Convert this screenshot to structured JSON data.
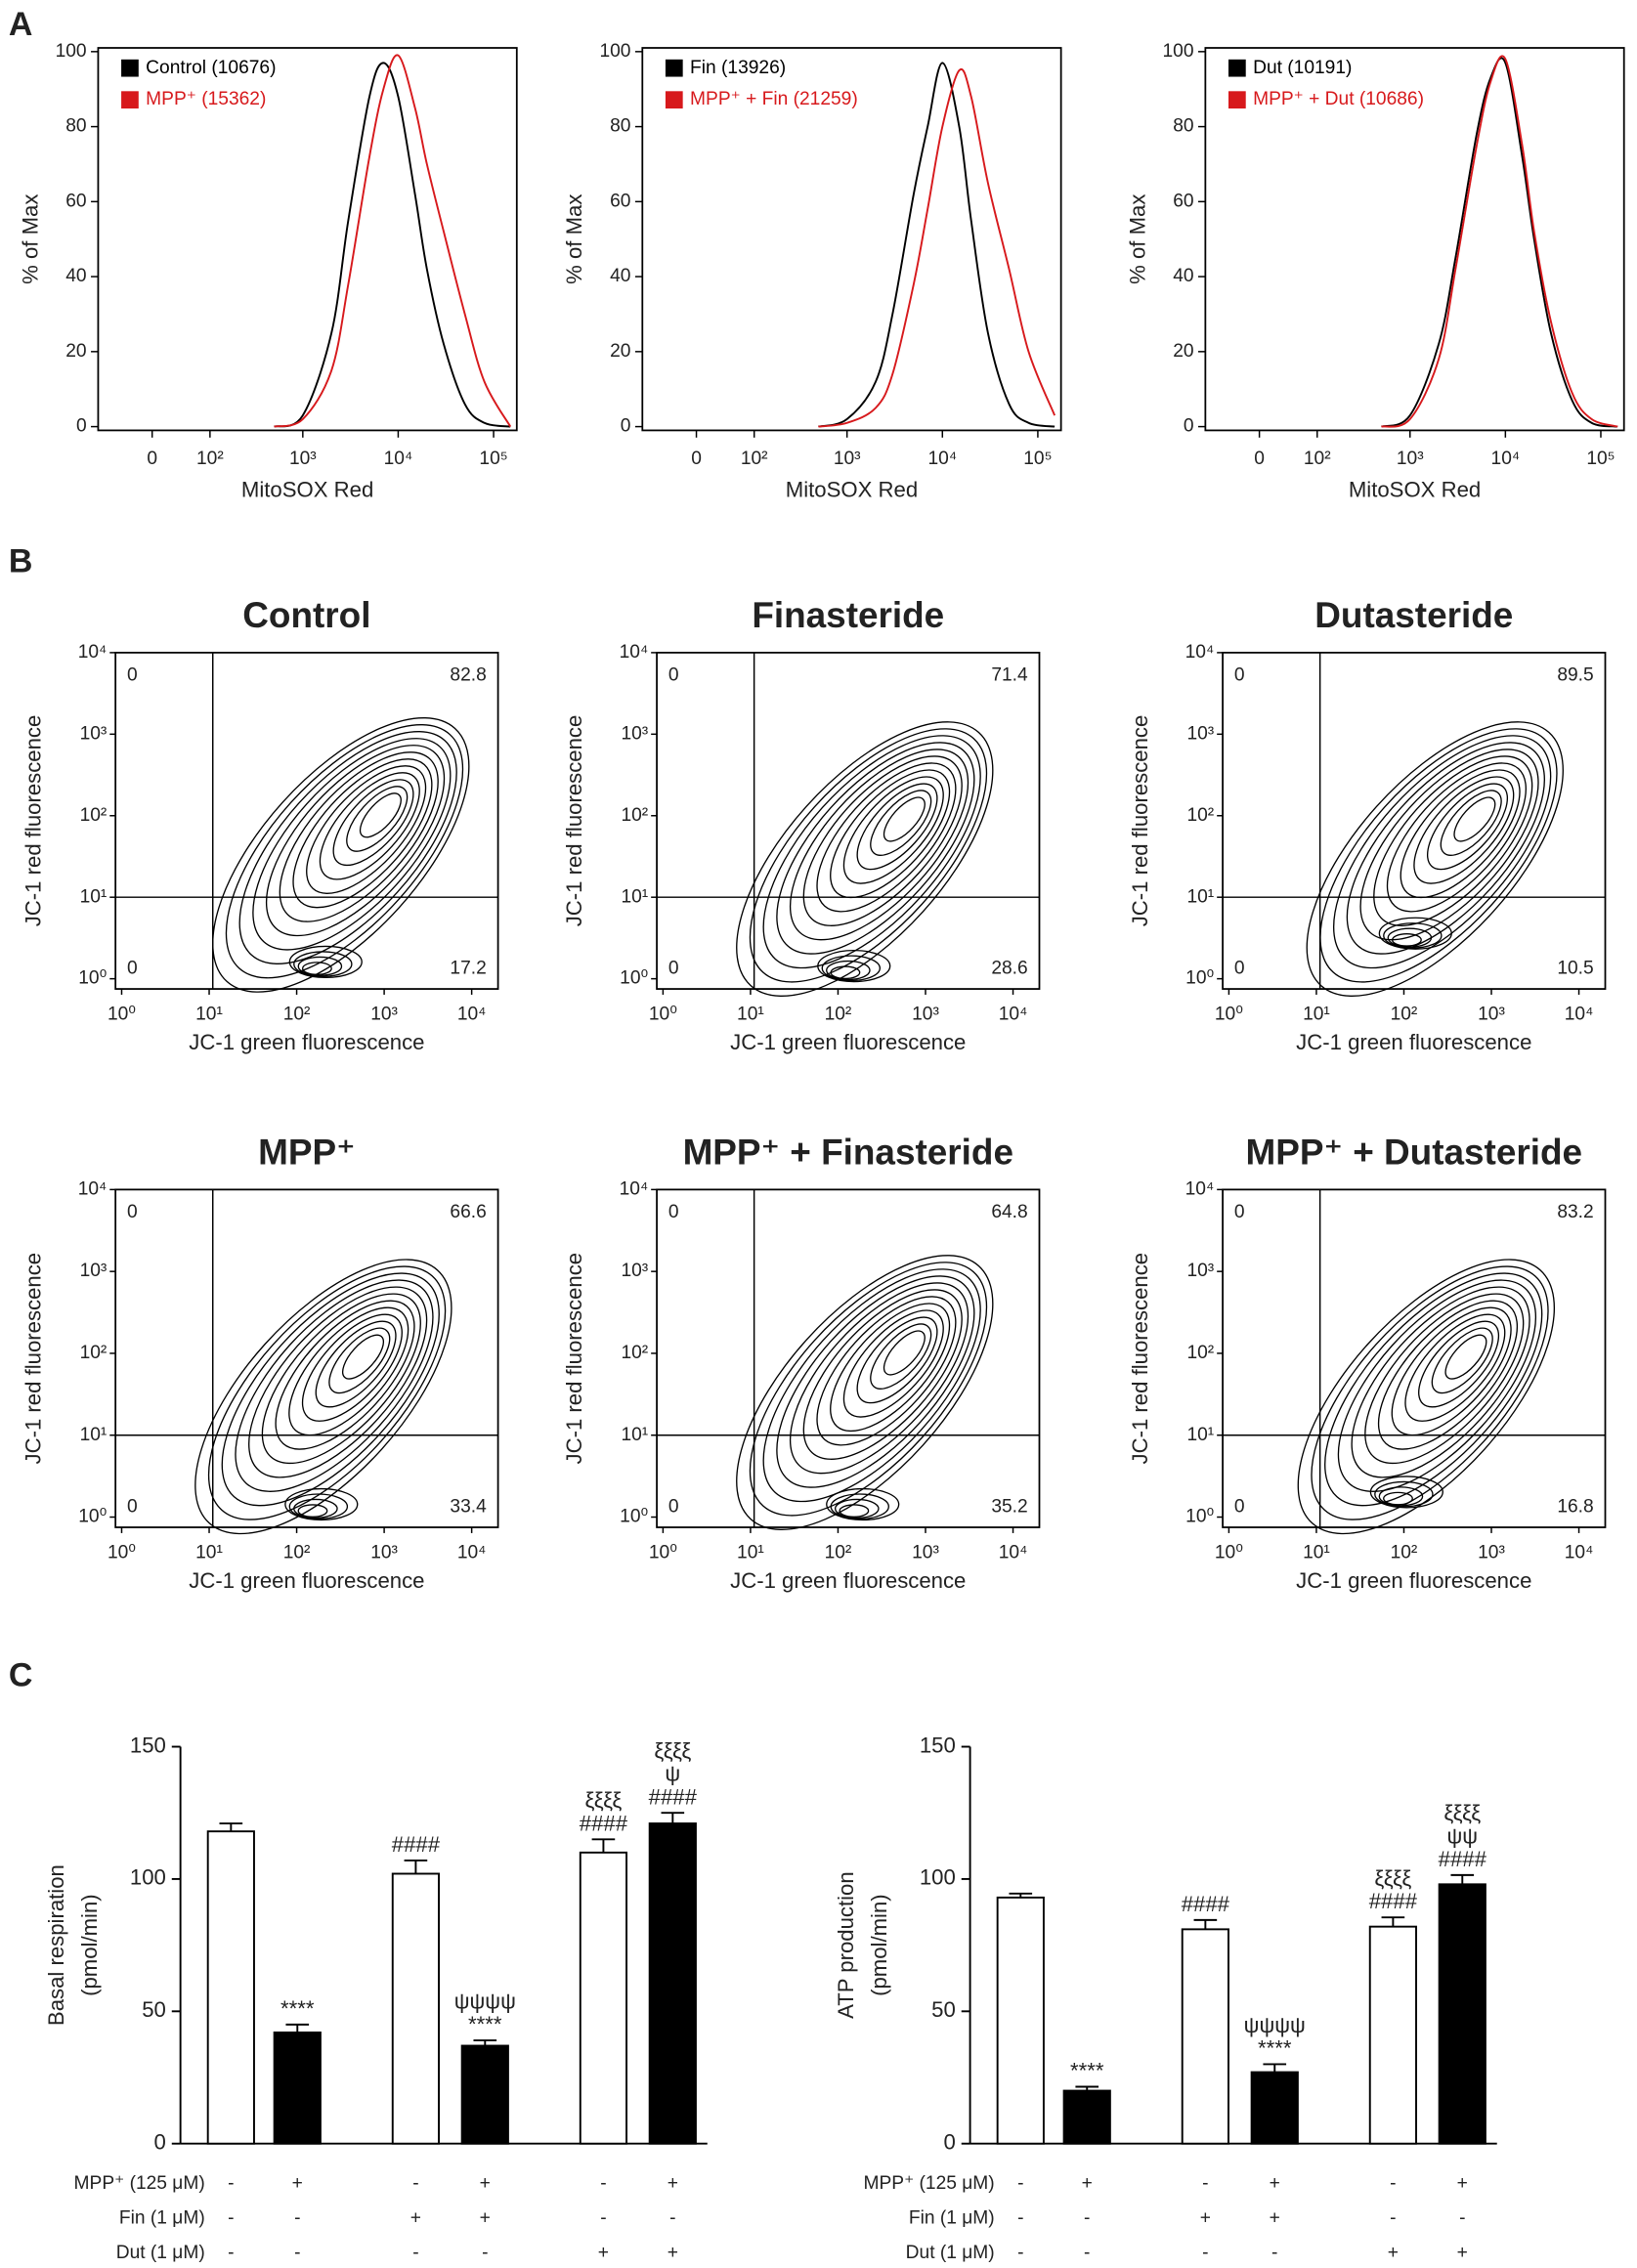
{
  "panel_labels": [
    "A",
    "B",
    "C"
  ],
  "chart_data": [
    {
      "type": "line",
      "xlabel": "MitoSOX Red",
      "ylabel": "% of Max",
      "xscale": "biexponential",
      "x": [
        500,
        1000,
        2000,
        3000,
        5000,
        7000,
        10000,
        15000,
        20000,
        30000,
        50000,
        80000,
        150000
      ],
      "series": [
        {
          "name": "Control (10676)",
          "color": "#000000",
          "values": [
            0,
            3,
            25,
            55,
            88,
            97,
            88,
            62,
            42,
            22,
            6,
            1,
            0
          ]
        },
        {
          "name": "MPP⁺ (15362)",
          "color": "#d7191c",
          "values": [
            0,
            2,
            15,
            38,
            72,
            90,
            99,
            85,
            70,
            52,
            30,
            12,
            0
          ]
        }
      ],
      "xlim": [
        -90,
        175000
      ],
      "xticks": [
        {
          "value": 0,
          "label": "0"
        },
        {
          "value": 100,
          "label": "10²"
        },
        {
          "value": 1000,
          "label": "10³"
        },
        {
          "value": 10000,
          "label": "10⁴"
        },
        {
          "value": 100000,
          "label": "10⁵"
        }
      ],
      "ylim": [
        -1,
        101
      ],
      "yticks": [
        0,
        20,
        40,
        60,
        80,
        100
      ],
      "legend": "upper left"
    },
    {
      "type": "line",
      "xlabel": "MitoSOX Red",
      "ylabel": "% of Max",
      "xscale": "biexponential",
      "x": [
        500,
        1000,
        2000,
        3000,
        5000,
        7000,
        10000,
        15000,
        20000,
        30000,
        50000,
        80000,
        150000
      ],
      "series": [
        {
          "name": "Fin (13926)",
          "color": "#000000",
          "values": [
            0,
            2,
            12,
            30,
            62,
            80,
            97,
            80,
            55,
            25,
            6,
            1,
            0
          ]
        },
        {
          "name": "MPP⁺ + Fin (21259)",
          "color": "#d7191c",
          "values": [
            0,
            1,
            5,
            14,
            38,
            58,
            80,
            95,
            88,
            65,
            42,
            20,
            3
          ]
        }
      ],
      "xlim": [
        -90,
        175000
      ],
      "xticks": [
        {
          "value": 0,
          "label": "0"
        },
        {
          "value": 100,
          "label": "10²"
        },
        {
          "value": 1000,
          "label": "10³"
        },
        {
          "value": 10000,
          "label": "10⁴"
        },
        {
          "value": 100000,
          "label": "10⁵"
        }
      ],
      "ylim": [
        -1,
        101
      ],
      "yticks": [
        0,
        20,
        40,
        60,
        80,
        100
      ],
      "legend": "upper left"
    },
    {
      "type": "line",
      "xlabel": "MitoSOX Red",
      "ylabel": "% of Max",
      "xscale": "biexponential",
      "x": [
        500,
        1000,
        2000,
        3000,
        5000,
        7000,
        10000,
        15000,
        20000,
        30000,
        50000,
        80000,
        150000
      ],
      "series": [
        {
          "name": "Dut (10191)",
          "color": "#000000",
          "values": [
            0,
            3,
            22,
            45,
            78,
            93,
            97,
            72,
            50,
            25,
            7,
            1,
            0
          ]
        },
        {
          "name": "MPP⁺ + Dut (10686)",
          "color": "#d7191c",
          "values": [
            0,
            2,
            18,
            42,
            75,
            92,
            98,
            75,
            52,
            28,
            9,
            2,
            0
          ]
        }
      ],
      "xlim": [
        -90,
        175000
      ],
      "xticks": [
        {
          "value": 0,
          "label": "0"
        },
        {
          "value": 100,
          "label": "10²"
        },
        {
          "value": 1000,
          "label": "10³"
        },
        {
          "value": 10000,
          "label": "10⁴"
        },
        {
          "value": 100000,
          "label": "10⁵"
        }
      ],
      "ylim": [
        -1,
        101
      ],
      "yticks": [
        0,
        20,
        40,
        60,
        80,
        100
      ],
      "legend": "upper left"
    },
    {
      "type": "contour",
      "title": "Control",
      "xlabel": "JC-1 green fluorescence",
      "ylabel": "JC-1 red fluorescence",
      "xscale": "log",
      "yscale": "log",
      "xlim": [
        0.85,
        20000
      ],
      "ylim": [
        0.75,
        10000
      ],
      "xticks": [
        {
          "value": 1,
          "label": "10⁰"
        },
        {
          "value": 10,
          "label": "10¹"
        },
        {
          "value": 100,
          "label": "10²"
        },
        {
          "value": 1000,
          "label": "10³"
        },
        {
          "value": 10000,
          "label": "10⁴"
        }
      ],
      "yticks": [
        {
          "value": 1,
          "label": "10⁰"
        },
        {
          "value": 10,
          "label": "10¹"
        },
        {
          "value": 100,
          "label": "10²"
        },
        {
          "value": 1000,
          "label": "10³"
        },
        {
          "value": 10000,
          "label": "10⁴"
        }
      ],
      "gates": {
        "x": 11,
        "y": 10
      },
      "quadrants": [
        0,
        82.8,
        0,
        17.2
      ]
    },
    {
      "type": "contour",
      "title": "Finasteride",
      "xlabel": "JC-1 green fluorescence",
      "ylabel": "JC-1 red fluorescence",
      "xscale": "log",
      "yscale": "log",
      "xlim": [
        0.85,
        20000
      ],
      "ylim": [
        0.75,
        10000
      ],
      "xticks": [
        {
          "value": 1,
          "label": "10⁰"
        },
        {
          "value": 10,
          "label": "10¹"
        },
        {
          "value": 100,
          "label": "10²"
        },
        {
          "value": 1000,
          "label": "10³"
        },
        {
          "value": 10000,
          "label": "10⁴"
        }
      ],
      "yticks": [
        {
          "value": 1,
          "label": "10⁰"
        },
        {
          "value": 10,
          "label": "10¹"
        },
        {
          "value": 100,
          "label": "10²"
        },
        {
          "value": 1000,
          "label": "10³"
        },
        {
          "value": 10000,
          "label": "10⁴"
        }
      ],
      "gates": {
        "x": 11,
        "y": 10
      },
      "quadrants": [
        0,
        71.4,
        0,
        28.6
      ]
    },
    {
      "type": "contour",
      "title": "Dutasteride",
      "xlabel": "JC-1 green fluorescence",
      "ylabel": "JC-1 red fluorescence",
      "xscale": "log",
      "yscale": "log",
      "xlim": [
        0.85,
        20000
      ],
      "ylim": [
        0.75,
        10000
      ],
      "xticks": [
        {
          "value": 1,
          "label": "10⁰"
        },
        {
          "value": 10,
          "label": "10¹"
        },
        {
          "value": 100,
          "label": "10²"
        },
        {
          "value": 1000,
          "label": "10³"
        },
        {
          "value": 10000,
          "label": "10⁴"
        }
      ],
      "yticks": [
        {
          "value": 1,
          "label": "10⁰"
        },
        {
          "value": 10,
          "label": "10¹"
        },
        {
          "value": 100,
          "label": "10²"
        },
        {
          "value": 1000,
          "label": "10³"
        },
        {
          "value": 10000,
          "label": "10⁴"
        }
      ],
      "gates": {
        "x": 11,
        "y": 10
      },
      "quadrants": [
        0,
        89.5,
        0,
        10.5
      ]
    },
    {
      "type": "contour",
      "title": "MPP⁺",
      "xlabel": "JC-1 green fluorescence",
      "ylabel": "JC-1 red fluorescence",
      "xscale": "log",
      "yscale": "log",
      "xlim": [
        0.85,
        20000
      ],
      "ylim": [
        0.75,
        10000
      ],
      "xticks": [
        {
          "value": 1,
          "label": "10⁰"
        },
        {
          "value": 10,
          "label": "10¹"
        },
        {
          "value": 100,
          "label": "10²"
        },
        {
          "value": 1000,
          "label": "10³"
        },
        {
          "value": 10000,
          "label": "10⁴"
        }
      ],
      "yticks": [
        {
          "value": 1,
          "label": "10⁰"
        },
        {
          "value": 10,
          "label": "10¹"
        },
        {
          "value": 100,
          "label": "10²"
        },
        {
          "value": 1000,
          "label": "10³"
        },
        {
          "value": 10000,
          "label": "10⁴"
        }
      ],
      "gates": {
        "x": 11,
        "y": 10
      },
      "quadrants": [
        0,
        66.6,
        0,
        33.4
      ]
    },
    {
      "type": "contour",
      "title": "MPP⁺ + Finasteride",
      "xlabel": "JC-1 green fluorescence",
      "ylabel": "JC-1 red fluorescence",
      "xscale": "log",
      "yscale": "log",
      "xlim": [
        0.85,
        20000
      ],
      "ylim": [
        0.75,
        10000
      ],
      "xticks": [
        {
          "value": 1,
          "label": "10⁰"
        },
        {
          "value": 10,
          "label": "10¹"
        },
        {
          "value": 100,
          "label": "10²"
        },
        {
          "value": 1000,
          "label": "10³"
        },
        {
          "value": 10000,
          "label": "10⁴"
        }
      ],
      "yticks": [
        {
          "value": 1,
          "label": "10⁰"
        },
        {
          "value": 10,
          "label": "10¹"
        },
        {
          "value": 100,
          "label": "10²"
        },
        {
          "value": 1000,
          "label": "10³"
        },
        {
          "value": 10000,
          "label": "10⁴"
        }
      ],
      "gates": {
        "x": 11,
        "y": 10
      },
      "quadrants": [
        0,
        64.8,
        0,
        35.2
      ]
    },
    {
      "type": "contour",
      "title": "MPP⁺ + Dutasteride",
      "xlabel": "JC-1 green fluorescence",
      "ylabel": "JC-1 red fluorescence",
      "xscale": "log",
      "yscale": "log",
      "xlim": [
        0.85,
        20000
      ],
      "ylim": [
        0.75,
        10000
      ],
      "xticks": [
        {
          "value": 1,
          "label": "10⁰"
        },
        {
          "value": 10,
          "label": "10¹"
        },
        {
          "value": 100,
          "label": "10²"
        },
        {
          "value": 1000,
          "label": "10³"
        },
        {
          "value": 10000,
          "label": "10⁴"
        }
      ],
      "yticks": [
        {
          "value": 1,
          "label": "10⁰"
        },
        {
          "value": 10,
          "label": "10¹"
        },
        {
          "value": 100,
          "label": "10²"
        },
        {
          "value": 1000,
          "label": "10³"
        },
        {
          "value": 10000,
          "label": "10⁴"
        }
      ],
      "gates": {
        "x": 11,
        "y": 10
      },
      "quadrants": [
        0,
        83.2,
        0,
        16.8
      ]
    },
    {
      "type": "bar",
      "ylabel": [
        "Basal respiration",
        "(pmol/min)"
      ],
      "values": [
        118,
        42,
        102,
        37,
        110,
        121
      ],
      "errors": [
        3,
        3,
        5,
        2,
        5,
        4
      ],
      "colors": [
        "#ffffff",
        "#000000",
        "#ffffff",
        "#000000",
        "#ffffff",
        "#000000"
      ],
      "annotations": [
        [],
        [
          "****"
        ],
        [
          "####"
        ],
        [
          "ψψψψ",
          "****"
        ],
        [
          "ξξξξ",
          "####"
        ],
        [
          "ξξξξ",
          "ψ",
          "####"
        ]
      ],
      "ylim": [
        0,
        150
      ],
      "yticks": [
        0,
        50,
        100,
        150
      ],
      "treatments": {
        "labels": [
          "MPP⁺ (125 μM)",
          "Fin (1 μM)",
          "Dut (1 μM)"
        ],
        "rows": [
          [
            "-",
            "+",
            "-",
            "+",
            "-",
            "+"
          ],
          [
            "-",
            "-",
            "+",
            "+",
            "-",
            "-"
          ],
          [
            "-",
            "-",
            "-",
            "-",
            "+",
            "+"
          ]
        ]
      }
    },
    {
      "type": "bar",
      "ylabel": [
        "ATP production",
        "(pmol/min)"
      ],
      "values": [
        93,
        20,
        81,
        27,
        82,
        98
      ],
      "errors": [
        1.5,
        1.5,
        3.5,
        3,
        3.5,
        3.5
      ],
      "colors": [
        "#ffffff",
        "#000000",
        "#ffffff",
        "#000000",
        "#ffffff",
        "#000000"
      ],
      "annotations": [
        [],
        [
          "****"
        ],
        [
          "####"
        ],
        [
          "ψψψψ",
          "****"
        ],
        [
          "ξξξξ",
          "####"
        ],
        [
          "ξξξξ",
          "ψψ",
          "####"
        ]
      ],
      "ylim": [
        0,
        150
      ],
      "yticks": [
        0,
        50,
        100,
        150
      ],
      "treatments": {
        "labels": [
          "MPP⁺ (125 μM)",
          "Fin (1 μM)",
          "Dut (1 μM)"
        ],
        "rows": [
          [
            "-",
            "+",
            "-",
            "+",
            "-",
            "+"
          ],
          [
            "-",
            "-",
            "+",
            "+",
            "-",
            "-"
          ],
          [
            "-",
            "-",
            "-",
            "-",
            "+",
            "+"
          ]
        ]
      }
    }
  ]
}
